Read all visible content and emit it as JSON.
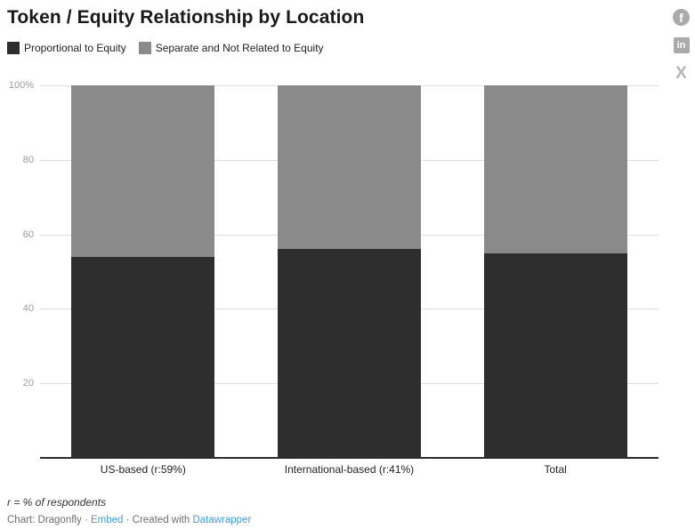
{
  "title": "Token / Equity Relationship by Location",
  "legend": [
    {
      "label": "Proportional to Equity",
      "color": "#2e2e2e"
    },
    {
      "label": "Separate and Not Related to Equity",
      "color": "#8a8a8a"
    }
  ],
  "icons": {
    "facebook": "f",
    "linkedin": "in",
    "x": "X"
  },
  "chart_data": {
    "type": "bar",
    "stacked": true,
    "title": "Token / Equity Relationship by Location",
    "unit": "%",
    "categories": [
      "US-based (r:59%)",
      "International-based (r:41%)",
      "Total"
    ],
    "series": [
      {
        "name": "Proportional to Equity",
        "color": "#2e2e2e",
        "values": [
          54,
          56,
          55
        ]
      },
      {
        "name": "Separate and Not Related to Equity",
        "color": "#8a8a8a",
        "values": [
          46,
          44,
          45
        ]
      }
    ],
    "y_ticks": [
      {
        "label": "100%",
        "value": 100
      },
      {
        "label": "80",
        "value": 80
      },
      {
        "label": "60",
        "value": 60
      },
      {
        "label": "40",
        "value": 40
      },
      {
        "label": "20",
        "value": 20
      }
    ],
    "ylim": [
      0,
      100
    ],
    "grid": true,
    "legend_position": "top"
  },
  "footer": {
    "note": "r = % of respondents",
    "byline_prefix": "Chart: Dragonfly",
    "separator": "·",
    "embed_link": "Embed",
    "created_with": "Created with",
    "tool_link": "Datawrapper",
    "link_color": "#3da0dd"
  }
}
